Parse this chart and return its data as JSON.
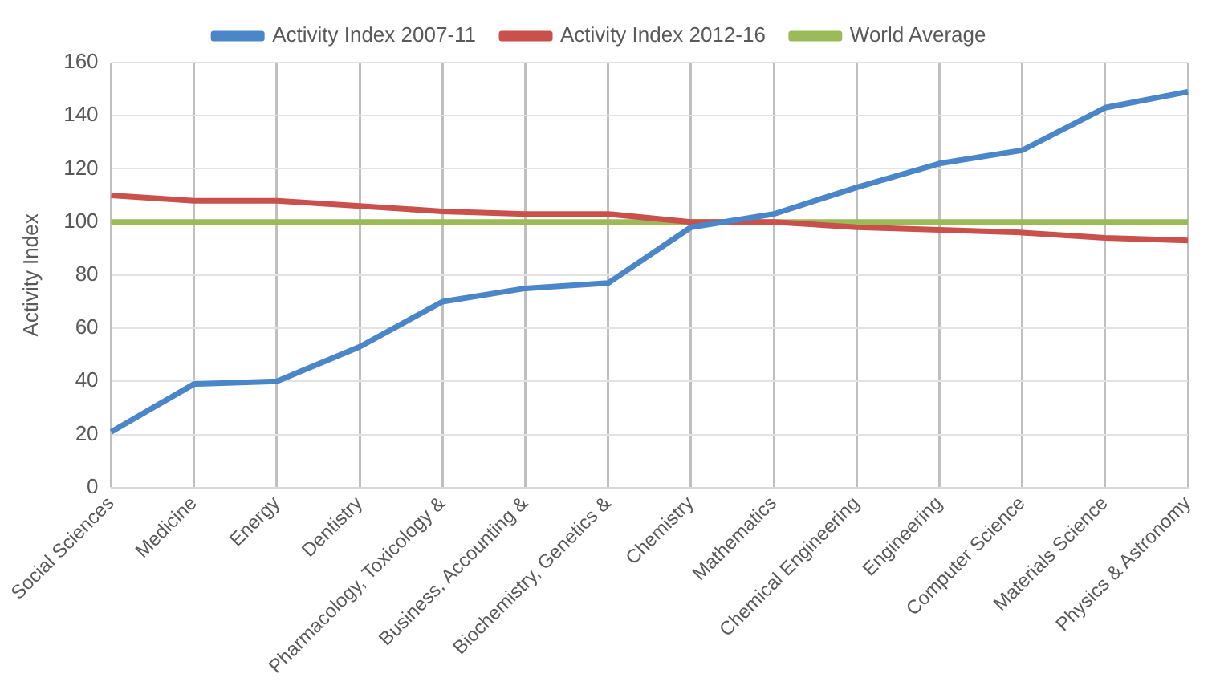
{
  "chart_data": {
    "type": "line",
    "ylabel": "Activity Index",
    "categories": [
      "Social Sciences",
      "Medicine",
      "Energy",
      "Dentistry",
      "Pharmacology, Toxicology &",
      "Business, Accounting &",
      "Biochemistry, Genetics &",
      "Chemistry",
      "Mathematics",
      "Chemical Engineering",
      "Engineering",
      "Computer Science",
      "Materials Science",
      "Physics & Astronomy"
    ],
    "series": [
      {
        "name": "Activity Index 2007-11",
        "color": "#4a86c8",
        "values": [
          21,
          39,
          40,
          53,
          70,
          75,
          77,
          98,
          103,
          113,
          122,
          127,
          143,
          149
        ]
      },
      {
        "name": "Activity Index 2012-16",
        "color": "#c9504b",
        "values": [
          110,
          108,
          108,
          106,
          104,
          103,
          103,
          100,
          100,
          98,
          97,
          96,
          94,
          93
        ]
      },
      {
        "name": "World Average",
        "color": "#9bbb59",
        "values": [
          100,
          100,
          100,
          100,
          100,
          100,
          100,
          100,
          100,
          100,
          100,
          100,
          100,
          100
        ]
      }
    ],
    "ylim": [
      0,
      160
    ],
    "yticks": [
      0,
      20,
      40,
      60,
      80,
      100,
      120,
      140,
      160
    ],
    "grid": true,
    "legend": "top",
    "marker": "none",
    "line_style": "solid"
  }
}
